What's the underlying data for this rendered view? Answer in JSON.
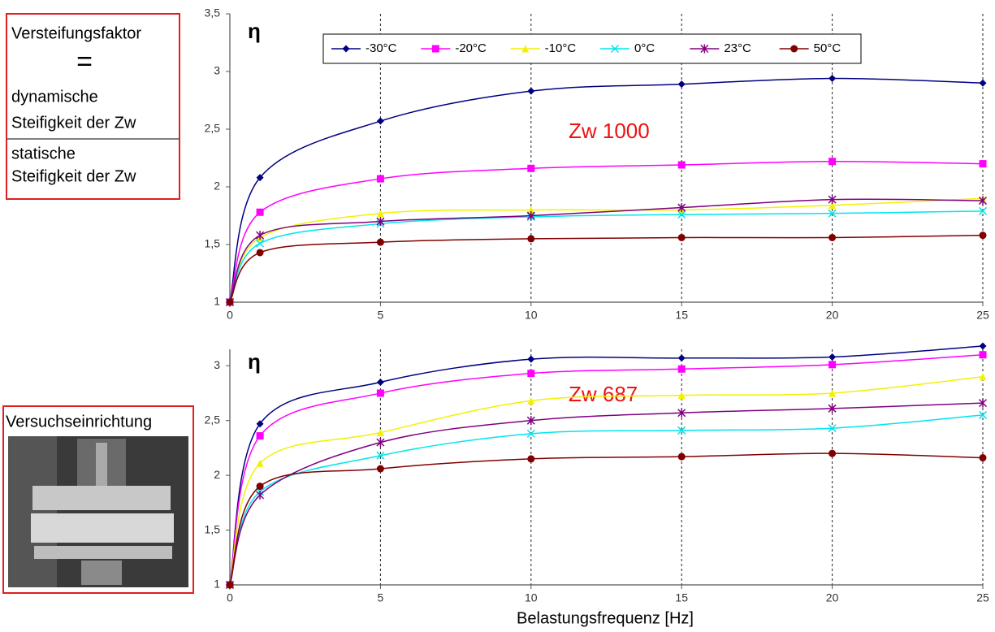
{
  "definition": {
    "term": "Versteifungsfaktor",
    "equals": "=",
    "numerator": [
      "dynamische",
      "Steifigkeit der Zw"
    ],
    "denominator": [
      "statische",
      "Steifigkeit der Zw"
    ]
  },
  "setup": {
    "label": "Versuchseinrichtung"
  },
  "chart_data": [
    {
      "type": "line",
      "ylabel": "η",
      "annotation": "Zw 1000",
      "x": [
        0,
        1,
        5,
        10,
        15,
        20,
        25
      ],
      "xlim": [
        0,
        25
      ],
      "xticks": [
        0,
        5,
        10,
        15,
        20,
        25
      ],
      "ylim": [
        1,
        3.5
      ],
      "yticks": [
        1,
        {
          "value": 1.5,
          "label": "1,5"
        },
        2,
        {
          "value": 2.5,
          "label": "2,5"
        },
        3,
        {
          "value": 3.5,
          "label": "3,5"
        }
      ],
      "grid": "x",
      "legend": "top",
      "series": [
        {
          "name": "-30°C",
          "color": "#000080",
          "marker": "diamond",
          "values": [
            1,
            2.08,
            2.57,
            2.83,
            2.89,
            2.94,
            2.9
          ]
        },
        {
          "name": "-20°C",
          "color": "#ff00ff",
          "marker": "square",
          "values": [
            1,
            1.78,
            2.07,
            2.16,
            2.19,
            2.22,
            2.2
          ]
        },
        {
          "name": "-10°C",
          "color": "#f2f200",
          "marker": "triangle",
          "values": [
            1,
            1.56,
            1.77,
            1.8,
            1.8,
            1.84,
            1.9
          ]
        },
        {
          "name": "0°C",
          "color": "#00e5ee",
          "marker": "x",
          "values": [
            1,
            1.51,
            1.68,
            1.74,
            1.76,
            1.77,
            1.79
          ]
        },
        {
          "name": "23°C",
          "color": "#800080",
          "marker": "star",
          "values": [
            1,
            1.58,
            1.7,
            1.75,
            1.82,
            1.89,
            1.88
          ]
        },
        {
          "name": "50°C",
          "color": "#800000",
          "marker": "circle",
          "values": [
            1,
            1.43,
            1.52,
            1.55,
            1.56,
            1.56,
            1.58
          ]
        }
      ]
    },
    {
      "type": "line",
      "ylabel": "η",
      "annotation": "Zw 687",
      "xlabel": "Belastungsfrequenz [Hz]",
      "x": [
        0,
        1,
        5,
        10,
        15,
        20,
        25
      ],
      "xlim": [
        0,
        25
      ],
      "xticks": [
        0,
        5,
        10,
        15,
        20,
        25
      ],
      "ylim": [
        1,
        3.15
      ],
      "yticks": [
        1,
        {
          "value": 1.5,
          "label": "1,5"
        },
        2,
        {
          "value": 2.5,
          "label": "2,5"
        },
        3
      ],
      "grid": "x",
      "series": [
        {
          "color": "#000080",
          "marker": "diamond",
          "values": [
            1,
            2.47,
            2.85,
            3.06,
            3.07,
            3.08,
            3.18
          ]
        },
        {
          "color": "#ff00ff",
          "marker": "square",
          "values": [
            1,
            2.36,
            2.75,
            2.93,
            2.97,
            3.01,
            3.1
          ]
        },
        {
          "color": "#f2f200",
          "marker": "triangle",
          "values": [
            1,
            2.11,
            2.39,
            2.68,
            2.73,
            2.75,
            2.9
          ]
        },
        {
          "color": "#00e5ee",
          "marker": "x",
          "values": [
            1,
            1.85,
            2.18,
            2.38,
            2.41,
            2.43,
            2.55
          ]
        },
        {
          "color": "#800080",
          "marker": "star",
          "values": [
            1,
            1.82,
            2.3,
            2.5,
            2.57,
            2.61,
            2.66
          ]
        },
        {
          "color": "#800000",
          "marker": "circle",
          "values": [
            1,
            1.9,
            2.06,
            2.15,
            2.17,
            2.2,
            2.16
          ]
        }
      ]
    }
  ]
}
